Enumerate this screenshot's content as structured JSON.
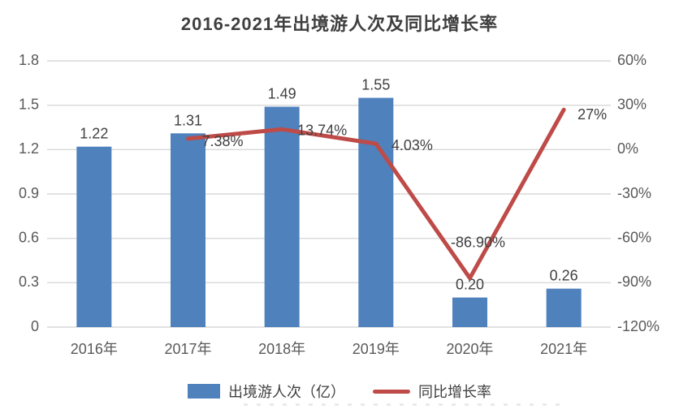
{
  "title": "2016-2021年出境游人次及同比增长率",
  "colors": {
    "bar": "#4F81BD",
    "line": "#BE4B48",
    "grid": "#D9D9D9",
    "axis_text": "#595959",
    "label_text": "#404040",
    "title_text": "#3F3F3F",
    "background": "#FFFFFF"
  },
  "chart_data": {
    "type": "bar+line",
    "title": "2016-2021年出境游人次及同比增长率",
    "categories": [
      "2016年",
      "2017年",
      "2018年",
      "2019年",
      "2020年",
      "2021年"
    ],
    "series": [
      {
        "name": "出境游人次（亿）",
        "type": "bar",
        "axis": "left",
        "color": "#4F81BD",
        "values": [
          1.22,
          1.31,
          1.49,
          1.55,
          0.2,
          0.26
        ],
        "labels": [
          "1.22",
          "1.31",
          "1.49",
          "1.55",
          "0.20",
          "0.26"
        ]
      },
      {
        "name": "同比增长率",
        "type": "line",
        "axis": "right",
        "color": "#BE4B48",
        "values": [
          null,
          7.38,
          13.74,
          4.03,
          -86.9,
          27
        ],
        "labels": [
          null,
          "7.38%",
          "13.74%",
          "4.03%",
          "-86.90%",
          "27%"
        ]
      }
    ],
    "axes": {
      "left": {
        "min": 0,
        "max": 1.8,
        "step": 0.3,
        "ticks": [
          "0",
          "0.3",
          "0.6",
          "0.9",
          "1.2",
          "1.5",
          "1.8"
        ]
      },
      "right": {
        "min": -120,
        "max": 60,
        "step": 30,
        "ticks": [
          "-120%",
          "-90%",
          "-60%",
          "-30%",
          "0%",
          "30%",
          "60%"
        ]
      }
    },
    "grid": true,
    "legend_position": "bottom"
  }
}
